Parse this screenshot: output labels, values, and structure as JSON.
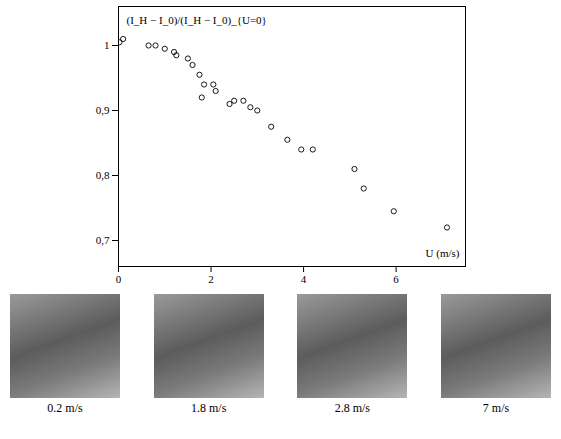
{
  "chart_data": {
    "type": "scatter",
    "x_label": "U (m/s)",
    "y_label": "(I_H − I_0)/(I_H − I_0)_{U=0}",
    "x": [
      0.02,
      0.1,
      0.65,
      0.8,
      1.0,
      1.2,
      1.25,
      1.5,
      1.6,
      1.75,
      1.8,
      1.85,
      2.05,
      2.1,
      2.4,
      2.5,
      2.7,
      2.85,
      3.0,
      3.3,
      3.65,
      3.95,
      4.2,
      5.1,
      5.3,
      5.95,
      7.1
    ],
    "values": [
      1.005,
      1.01,
      1.0,
      1.0,
      0.995,
      0.99,
      0.985,
      0.98,
      0.97,
      0.955,
      0.92,
      0.94,
      0.94,
      0.93,
      0.91,
      0.915,
      0.915,
      0.905,
      0.9,
      0.875,
      0.855,
      0.84,
      0.84,
      0.81,
      0.78,
      0.745,
      0.72
    ],
    "color": "#000000",
    "marker": "circle",
    "xlim": [
      0,
      7.5
    ],
    "ylim": [
      0.66,
      1.06
    ],
    "xticks": [
      0,
      2,
      4,
      6
    ],
    "yticks": [
      {
        "value": 0.7,
        "label": "0,7"
      },
      {
        "value": 0.8,
        "label": "0,8"
      },
      {
        "value": 0.9,
        "label": "0,9"
      },
      1
    ],
    "grid": false
  },
  "images": [
    {
      "caption": "0.2 m/s"
    },
    {
      "caption": "1.8 m/s"
    },
    {
      "caption": "2.8 m/s"
    },
    {
      "caption": "7 m/s"
    }
  ]
}
